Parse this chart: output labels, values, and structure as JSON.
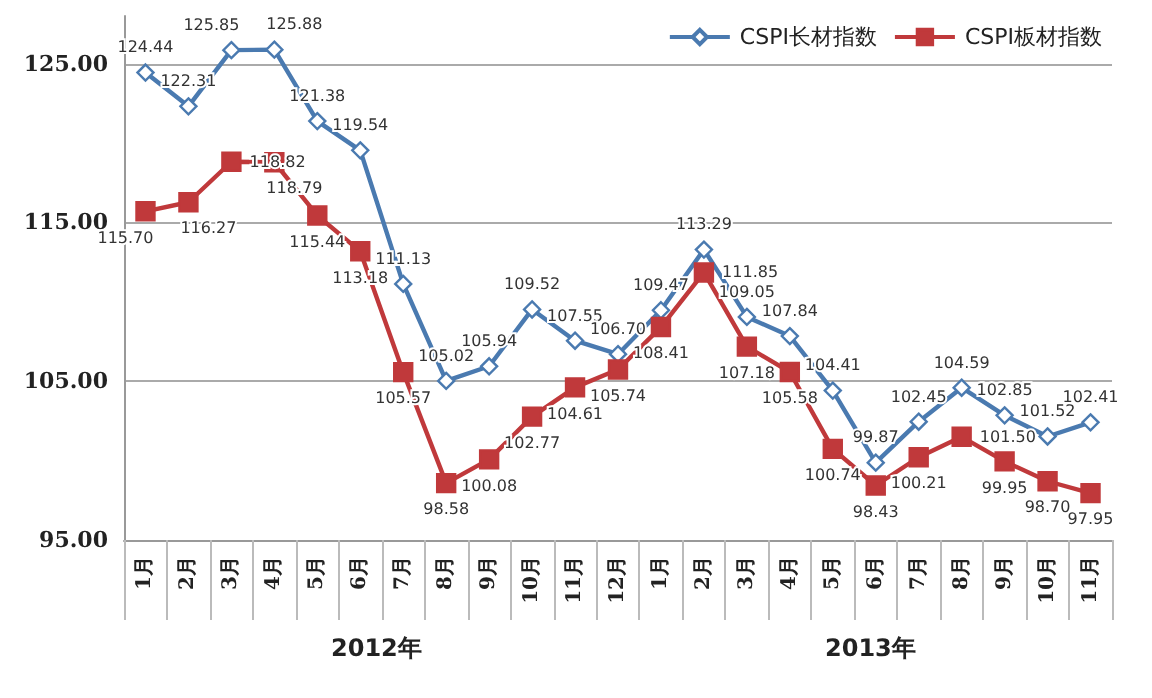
{
  "chart_data": {
    "type": "line",
    "categories": [
      "1月",
      "2月",
      "3月",
      "4月",
      "5月",
      "6月",
      "7月",
      "8月",
      "9月",
      "10月",
      "11月",
      "12月",
      "1月",
      "2月",
      "3月",
      "4月",
      "5月",
      "6月",
      "7月",
      "8月",
      "9月",
      "10月",
      "11月"
    ],
    "series": [
      {
        "name": "CSPI长材指数",
        "color": "#4a7ab0",
        "marker": "diamond",
        "value_labels": [
          "124.44",
          "122.31",
          "125.85",
          "125.88",
          "121.38",
          "119.54",
          "111.13",
          "105.02",
          "105.94",
          "109.52",
          "107.55",
          "106.70",
          "109.47",
          "113.29",
          "109.05",
          "107.84",
          "104.41",
          "99.87",
          "102.45",
          "104.59",
          "102.85",
          "101.52",
          "102.41"
        ],
        "values": [
          124.44,
          122.31,
          125.85,
          125.88,
          121.38,
          119.54,
          111.13,
          105.02,
          105.94,
          109.52,
          107.55,
          106.7,
          109.47,
          113.29,
          109.05,
          107.84,
          104.41,
          99.87,
          102.45,
          104.59,
          102.85,
          101.52,
          102.41
        ]
      },
      {
        "name": "CSPI板材指数",
        "color": "#c0393b",
        "marker": "square",
        "value_labels": [
          "115.70",
          "116.27",
          "118.82",
          "118.79",
          "115.44",
          "113.18",
          "105.57",
          "98.58",
          "100.08",
          "102.77",
          "104.61",
          "105.74",
          "108.41",
          "111.85",
          "107.18",
          "105.58",
          "100.74",
          "98.43",
          "100.21",
          "101.50",
          "99.95",
          "98.70",
          "97.95"
        ],
        "values": [
          115.7,
          116.27,
          118.82,
          118.79,
          115.44,
          113.18,
          105.57,
          98.58,
          100.08,
          102.77,
          104.61,
          105.74,
          108.41,
          111.85,
          107.18,
          105.58,
          100.74,
          98.43,
          100.21,
          101.5,
          99.95,
          98.7,
          97.95
        ]
      }
    ],
    "ylim": [
      95,
      128
    ],
    "yticks": [
      {
        "value": 95,
        "label": "95.00"
      },
      {
        "value": 105,
        "label": "105.00"
      },
      {
        "value": 115,
        "label": "115.00"
      },
      {
        "value": 125,
        "label": "125.00"
      }
    ],
    "annotations": [
      "2012年",
      "2013年"
    ],
    "grid": "y",
    "legend": "top right"
  }
}
